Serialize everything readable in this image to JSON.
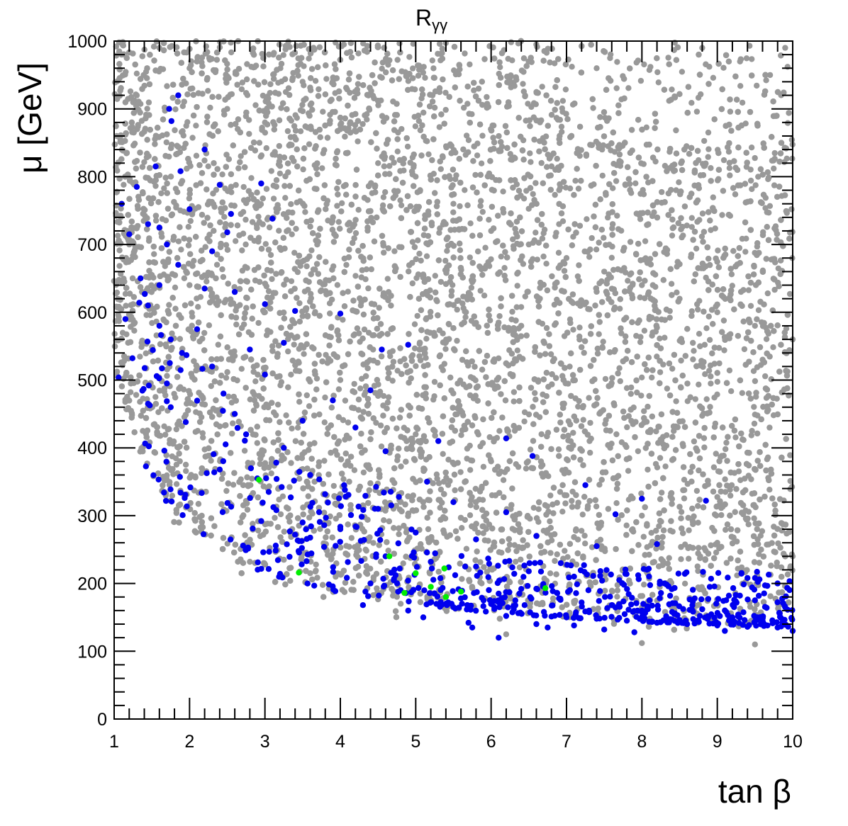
{
  "chart_data": {
    "type": "scatter",
    "title": "R",
    "title_subscript": "γγ",
    "xlabel": "tan β",
    "ylabel": "μ [GeV]",
    "xlim": [
      1,
      10
    ],
    "ylim": [
      0,
      1000
    ],
    "x_ticks": [
      "1",
      "2",
      "3",
      "4",
      "5",
      "6",
      "7",
      "8",
      "9",
      "10"
    ],
    "y_ticks": [
      "0",
      "100",
      "200",
      "300",
      "400",
      "500",
      "600",
      "700",
      "800",
      "900",
      "1000"
    ],
    "grid": false,
    "legend": "none",
    "series": [
      {
        "color": "#999999",
        "description": "dense band of points filling the region above the curve mu ≈ 110 + 300/(tanβ-0.5); roughly 9000 points",
        "envelope_points": [
          [
            1.05,
            560
          ],
          [
            1.5,
            450
          ],
          [
            2,
            400
          ],
          [
            2.5,
            320
          ],
          [
            3,
            250
          ],
          [
            3.5,
            210
          ],
          [
            4,
            180
          ],
          [
            4.5,
            160
          ],
          [
            5,
            145
          ],
          [
            6,
            130
          ],
          [
            7,
            115
          ],
          [
            8,
            110
          ],
          [
            9,
            108
          ],
          [
            10,
            105
          ]
        ],
        "values": [
          [
            1.1,
            980
          ],
          [
            1.3,
            920
          ],
          [
            1.6,
            990
          ],
          [
            2.0,
            960
          ],
          [
            2.5,
            900
          ],
          [
            3.0,
            880
          ],
          [
            3.5,
            940
          ],
          [
            4.0,
            870
          ],
          [
            4.5,
            820
          ],
          [
            5.0,
            800
          ],
          [
            5.5,
            760
          ],
          [
            6.0,
            720
          ],
          [
            6.5,
            700
          ],
          [
            7.0,
            680
          ],
          [
            7.5,
            660
          ],
          [
            8.0,
            640
          ],
          [
            8.5,
            620
          ],
          [
            9.0,
            600
          ],
          [
            9.5,
            580
          ],
          [
            10.0,
            560
          ],
          [
            1.2,
            700
          ],
          [
            2.0,
            640
          ],
          [
            3.0,
            600
          ],
          [
            4.0,
            500
          ],
          [
            5.0,
            420
          ],
          [
            6.0,
            380
          ],
          [
            7.0,
            330
          ],
          [
            8.0,
            300
          ],
          [
            9.0,
            260
          ],
          [
            10.0,
            240
          ],
          [
            2.8,
            232
          ],
          [
            3.6,
            215
          ],
          [
            4.8,
            170
          ],
          [
            6.2,
            125
          ],
          [
            8.0,
            112
          ],
          [
            9.5,
            110
          ],
          [
            9.9,
            990
          ],
          [
            9.7,
            950
          ],
          [
            8.8,
            990
          ],
          [
            7.4,
            960
          ]
        ]
      },
      {
        "color": "#0000ee",
        "description": "points forming a band along the lower edge of the distribution, from mu≈500–900 at tanβ≈1–2 down to mu≈130–250 at tanβ≈6–10",
        "values": [
          [
            1.85,
            920
          ],
          [
            1.73,
            900
          ],
          [
            1.76,
            882
          ],
          [
            2.2,
            840
          ],
          [
            1.55,
            815
          ],
          [
            1.88,
            808
          ],
          [
            2.95,
            790
          ],
          [
            2.4,
            788
          ],
          [
            1.3,
            785
          ],
          [
            1.1,
            760
          ],
          [
            2.55,
            745
          ],
          [
            3.1,
            738
          ],
          [
            2.0,
            752
          ],
          [
            1.45,
            730
          ],
          [
            1.6,
            725
          ],
          [
            2.5,
            718
          ],
          [
            1.2,
            715
          ],
          [
            1.7,
            700
          ],
          [
            2.3,
            690
          ],
          [
            1.85,
            670
          ],
          [
            1.35,
            650
          ],
          [
            1.6,
            640
          ],
          [
            2.2,
            635
          ],
          [
            2.6,
            630
          ],
          [
            1.45,
            610
          ],
          [
            3.0,
            612
          ],
          [
            3.4,
            602
          ],
          [
            4.0,
            598
          ],
          [
            1.15,
            590
          ],
          [
            1.6,
            580
          ],
          [
            2.1,
            575
          ],
          [
            1.75,
            560
          ],
          [
            2.8,
            545
          ],
          [
            3.25,
            555
          ],
          [
            4.9,
            552
          ],
          [
            4.55,
            545
          ],
          [
            1.9,
            540
          ],
          [
            2.3,
            520
          ],
          [
            3.0,
            508
          ],
          [
            1.7,
            495
          ],
          [
            2.45,
            480
          ],
          [
            3.9,
            470
          ],
          [
            4.4,
            485
          ],
          [
            1.45,
            465
          ],
          [
            1.75,
            460
          ],
          [
            2.6,
            450
          ],
          [
            3.5,
            440
          ],
          [
            4.2,
            430
          ],
          [
            5.3,
            410
          ],
          [
            6.2,
            414
          ],
          [
            1.95,
            438
          ],
          [
            2.75,
            420
          ],
          [
            3.25,
            400
          ],
          [
            4.6,
            395
          ],
          [
            6.55,
            388
          ],
          [
            2.4,
            368
          ],
          [
            2.9,
            355
          ],
          [
            3.6,
            360
          ],
          [
            4.05,
            345
          ],
          [
            5.15,
            350
          ],
          [
            7.25,
            345
          ],
          [
            3.05,
            335
          ],
          [
            4.5,
            310
          ],
          [
            5.5,
            320
          ],
          [
            6.2,
            305
          ],
          [
            7.65,
            302
          ],
          [
            8.0,
            325
          ],
          [
            8.85,
            322
          ],
          [
            3.5,
            290
          ],
          [
            4.0,
            280
          ],
          [
            5.0,
            275
          ],
          [
            5.8,
            265
          ],
          [
            6.6,
            270
          ],
          [
            7.4,
            255
          ],
          [
            8.2,
            258
          ],
          [
            2.95,
            292
          ],
          [
            3.4,
            272
          ],
          [
            4.6,
            240
          ],
          [
            5.2,
            232
          ],
          [
            5.8,
            225
          ],
          [
            6.5,
            218
          ],
          [
            7.1,
            210
          ],
          [
            7.7,
            205
          ],
          [
            8.3,
            200
          ],
          [
            8.9,
            195
          ],
          [
            9.4,
            208
          ],
          [
            9.8,
            200
          ],
          [
            4.4,
            200
          ],
          [
            4.8,
            190
          ],
          [
            5.25,
            185
          ],
          [
            5.6,
            178
          ],
          [
            6.0,
            170
          ],
          [
            6.3,
            162
          ],
          [
            6.7,
            158
          ],
          [
            7.0,
            150
          ],
          [
            7.4,
            148
          ],
          [
            7.8,
            145
          ],
          [
            8.2,
            142
          ],
          [
            8.6,
            140
          ],
          [
            9.0,
            138
          ],
          [
            9.4,
            136
          ],
          [
            9.8,
            135
          ],
          [
            10.0,
            130
          ],
          [
            4.3,
            168
          ],
          [
            4.9,
            160
          ],
          [
            5.5,
            165
          ],
          [
            5.9,
            175
          ],
          [
            6.1,
            185
          ],
          [
            6.4,
            192
          ],
          [
            6.9,
            178
          ],
          [
            7.2,
            172
          ],
          [
            7.6,
            168
          ],
          [
            8.0,
            160
          ],
          [
            8.4,
            158
          ],
          [
            8.8,
            162
          ],
          [
            9.2,
            150
          ],
          [
            9.6,
            148
          ],
          [
            5.1,
            150
          ],
          [
            5.7,
            142
          ],
          [
            6.2,
            152
          ],
          [
            6.6,
            140
          ],
          [
            7.1,
            138
          ],
          [
            7.5,
            132
          ],
          [
            7.9,
            128
          ],
          [
            8.5,
            146
          ],
          [
            9.1,
            130
          ],
          [
            9.5,
            175
          ],
          [
            9.9,
            165
          ],
          [
            5.75,
            135
          ],
          [
            6.1,
            120
          ],
          [
            6.75,
            135
          ],
          [
            7.3,
            160
          ],
          [
            8.1,
            175
          ],
          [
            8.7,
            178
          ],
          [
            9.3,
            182
          ]
        ]
      },
      {
        "color": "#00ee00",
        "description": "few points near the lower edge",
        "values": [
          [
            2.92,
            353
          ],
          [
            3.45,
            216
          ],
          [
            4.65,
            240
          ],
          [
            4.85,
            186
          ],
          [
            5.0,
            215
          ],
          [
            5.2,
            195
          ],
          [
            5.38,
            222
          ],
          [
            5.4,
            180
          ],
          [
            5.6,
            188
          ],
          [
            6.72,
            193
          ]
        ]
      }
    ]
  }
}
